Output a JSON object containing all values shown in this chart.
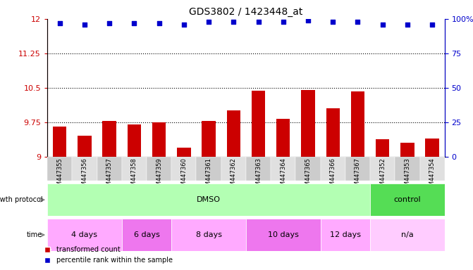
{
  "title": "GDS3802 / 1423448_at",
  "samples": [
    "GSM447355",
    "GSM447356",
    "GSM447357",
    "GSM447358",
    "GSM447359",
    "GSM447360",
    "GSM447361",
    "GSM447362",
    "GSM447363",
    "GSM447364",
    "GSM447365",
    "GSM447366",
    "GSM447367",
    "GSM447352",
    "GSM447353",
    "GSM447354"
  ],
  "red_values": [
    9.65,
    9.45,
    9.78,
    9.7,
    9.74,
    9.2,
    9.78,
    10.0,
    10.43,
    9.82,
    10.45,
    10.05,
    10.42,
    9.38,
    9.3,
    9.4
  ],
  "blue_values": [
    97,
    96,
    97,
    97,
    97,
    96,
    98,
    98,
    98,
    98,
    99,
    98,
    98,
    96,
    96,
    96
  ],
  "ylim_left": [
    9,
    12
  ],
  "ylim_right": [
    0,
    100
  ],
  "yticks_left": [
    9,
    9.75,
    10.5,
    11.25,
    12
  ],
  "yticks_right": [
    0,
    25,
    50,
    75,
    100
  ],
  "hlines": [
    9.75,
    10.5,
    11.25
  ],
  "bar_color": "#cc0000",
  "dot_color": "#0000cc",
  "bg_color": "#ffffff",
  "xticklabel_bg": "#d8d8d8",
  "growth_protocol_label": "growth protocol",
  "growth_protocol_groups": [
    {
      "label": "DMSO",
      "start": 0,
      "end": 13,
      "color": "#b3ffb3"
    },
    {
      "label": "control",
      "start": 13,
      "end": 16,
      "color": "#55dd55"
    }
  ],
  "time_label": "time",
  "time_groups": [
    {
      "label": "4 days",
      "start": 0,
      "end": 3,
      "color": "#ffaaff"
    },
    {
      "label": "6 days",
      "start": 3,
      "end": 5,
      "color": "#ee77ee"
    },
    {
      "label": "8 days",
      "start": 5,
      "end": 8,
      "color": "#ffaaff"
    },
    {
      "label": "10 days",
      "start": 8,
      "end": 11,
      "color": "#ee77ee"
    },
    {
      "label": "12 days",
      "start": 11,
      "end": 13,
      "color": "#ffaaff"
    },
    {
      "label": "n/a",
      "start": 13,
      "end": 16,
      "color": "#ffccff"
    }
  ],
  "legend_red": "transformed count",
  "legend_blue": "percentile rank within the sample",
  "bar_width": 0.55,
  "tick_color_left": "#cc0000",
  "tick_color_right": "#0000cc",
  "n_samples": 16
}
